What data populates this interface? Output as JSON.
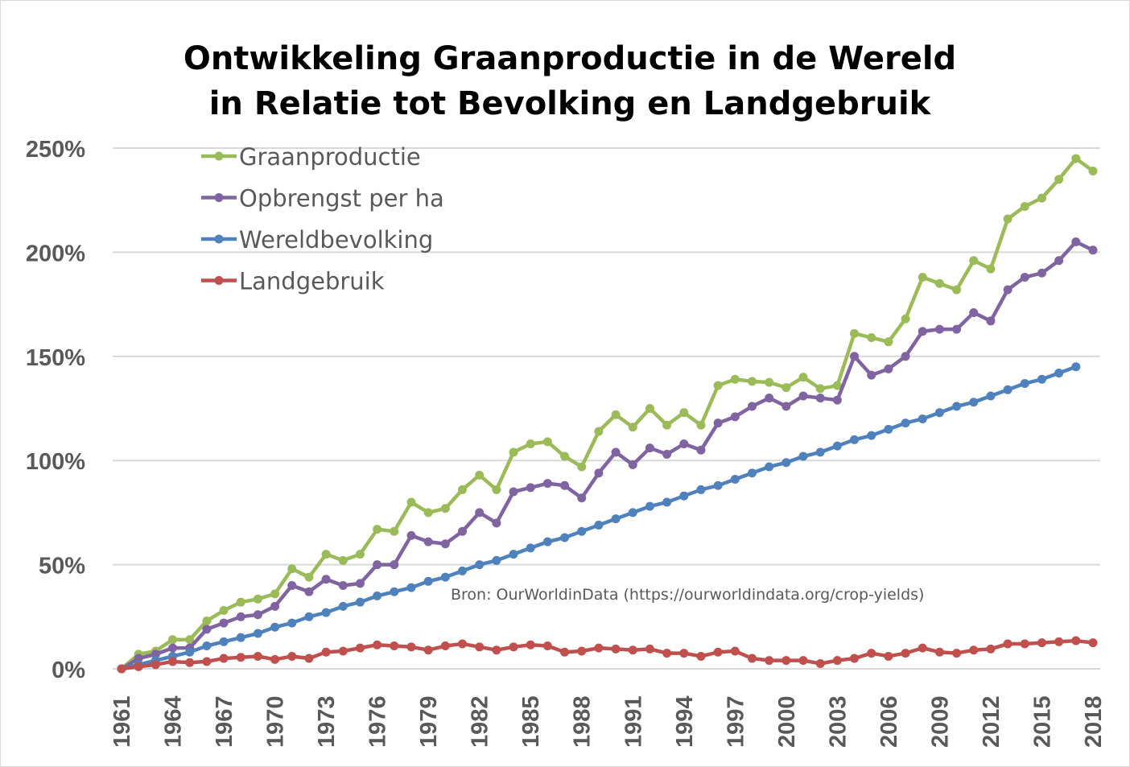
{
  "chart_data": {
    "type": "line",
    "title": [
      "Ontwikkeling Graanproductie in de Wereld",
      "in Relatie tot Bevolking en Landgebruik"
    ],
    "xlabel": "",
    "ylabel": "",
    "ylim": [
      0,
      250
    ],
    "yticks": [
      0,
      50,
      100,
      150,
      200,
      250
    ],
    "ytick_labels": [
      "0%",
      "50%",
      "100%",
      "150%",
      "200%",
      "250%"
    ],
    "xlim": [
      1961,
      2018
    ],
    "xtick_labels": [
      "1961",
      "1964",
      "1967",
      "1970",
      "1973",
      "1976",
      "1979",
      "1982",
      "1985",
      "1988",
      "1991",
      "1994",
      "1997",
      "2000",
      "2003",
      "2006",
      "2009",
      "2012",
      "2015",
      "2018"
    ],
    "grid": "horizontal",
    "legend_position": "top-left",
    "annotation": "Bron: OurWorldinData (https://ourworldindata.org/crop-yields)",
    "x": [
      1961,
      1962,
      1963,
      1964,
      1965,
      1966,
      1967,
      1968,
      1969,
      1970,
      1971,
      1972,
      1973,
      1974,
      1975,
      1976,
      1977,
      1978,
      1979,
      1980,
      1981,
      1982,
      1983,
      1984,
      1985,
      1986,
      1987,
      1988,
      1989,
      1990,
      1991,
      1992,
      1993,
      1994,
      1995,
      1996,
      1997,
      1998,
      1999,
      2000,
      2001,
      2002,
      2003,
      2004,
      2005,
      2006,
      2007,
      2008,
      2009,
      2010,
      2011,
      2012,
      2013,
      2014,
      2015,
      2016,
      2017,
      2018
    ],
    "series": [
      {
        "name": "Graanproductie",
        "color": "#9BBB59",
        "values": [
          0,
          7,
          8.5,
          14,
          14,
          23,
          28,
          32,
          33.5,
          36,
          48,
          44,
          55,
          52,
          55,
          67,
          66,
          80,
          75,
          77,
          86,
          93,
          86,
          104,
          108,
          109,
          102,
          97,
          114,
          122,
          116,
          125,
          117,
          123,
          117,
          136,
          139,
          138,
          137.5,
          135,
          140,
          134.5,
          136,
          161,
          159,
          157,
          168,
          188,
          185,
          182,
          196,
          192,
          216,
          222,
          226,
          235,
          245,
          239
        ]
      },
      {
        "name": "Opbrengst per ha",
        "color": "#8064A2",
        "values": [
          0,
          5,
          7,
          10,
          10,
          19,
          22,
          25,
          26,
          30,
          40,
          37,
          43,
          40,
          41,
          50,
          50,
          64,
          61,
          60,
          66,
          75,
          70,
          85,
          87,
          89,
          88,
          82,
          94,
          104,
          98,
          106,
          103,
          108,
          105,
          118,
          121,
          126,
          130,
          126,
          131,
          130,
          129,
          150,
          141,
          144,
          150,
          162,
          163,
          163,
          171,
          167,
          182,
          188,
          190,
          196,
          205,
          201
        ]
      },
      {
        "name": "Wereldbevolking",
        "color": "#4F81BD",
        "values": [
          0,
          2,
          4,
          6,
          8,
          11,
          13,
          15,
          17,
          20,
          22,
          25,
          27,
          30,
          32,
          35,
          37,
          39,
          42,
          44,
          47,
          50,
          52,
          55,
          58,
          61,
          63,
          66,
          69,
          72,
          75,
          78,
          80,
          83,
          86,
          88,
          91,
          94,
          97,
          99,
          102,
          104,
          107,
          110,
          112,
          115,
          118,
          120,
          123,
          126,
          128,
          131,
          134,
          137,
          139,
          142,
          145,
          null
        ]
      },
      {
        "name": "Landgebruik",
        "color": "#C0504D",
        "values": [
          0,
          1,
          2,
          3.5,
          3,
          3.5,
          5,
          5.5,
          6,
          4.5,
          6,
          5,
          8,
          8.5,
          10,
          11.5,
          11,
          10.5,
          9,
          11,
          12,
          10.5,
          9,
          10.5,
          11.5,
          11,
          8,
          8.5,
          10,
          9.5,
          9,
          9.5,
          7.5,
          7.5,
          6,
          8,
          8.5,
          5,
          4,
          4,
          4,
          2.5,
          4,
          5,
          7.5,
          6,
          7.5,
          10,
          8,
          7.5,
          9,
          9.5,
          12,
          12,
          12.5,
          13,
          13.5,
          12.5
        ]
      }
    ]
  }
}
